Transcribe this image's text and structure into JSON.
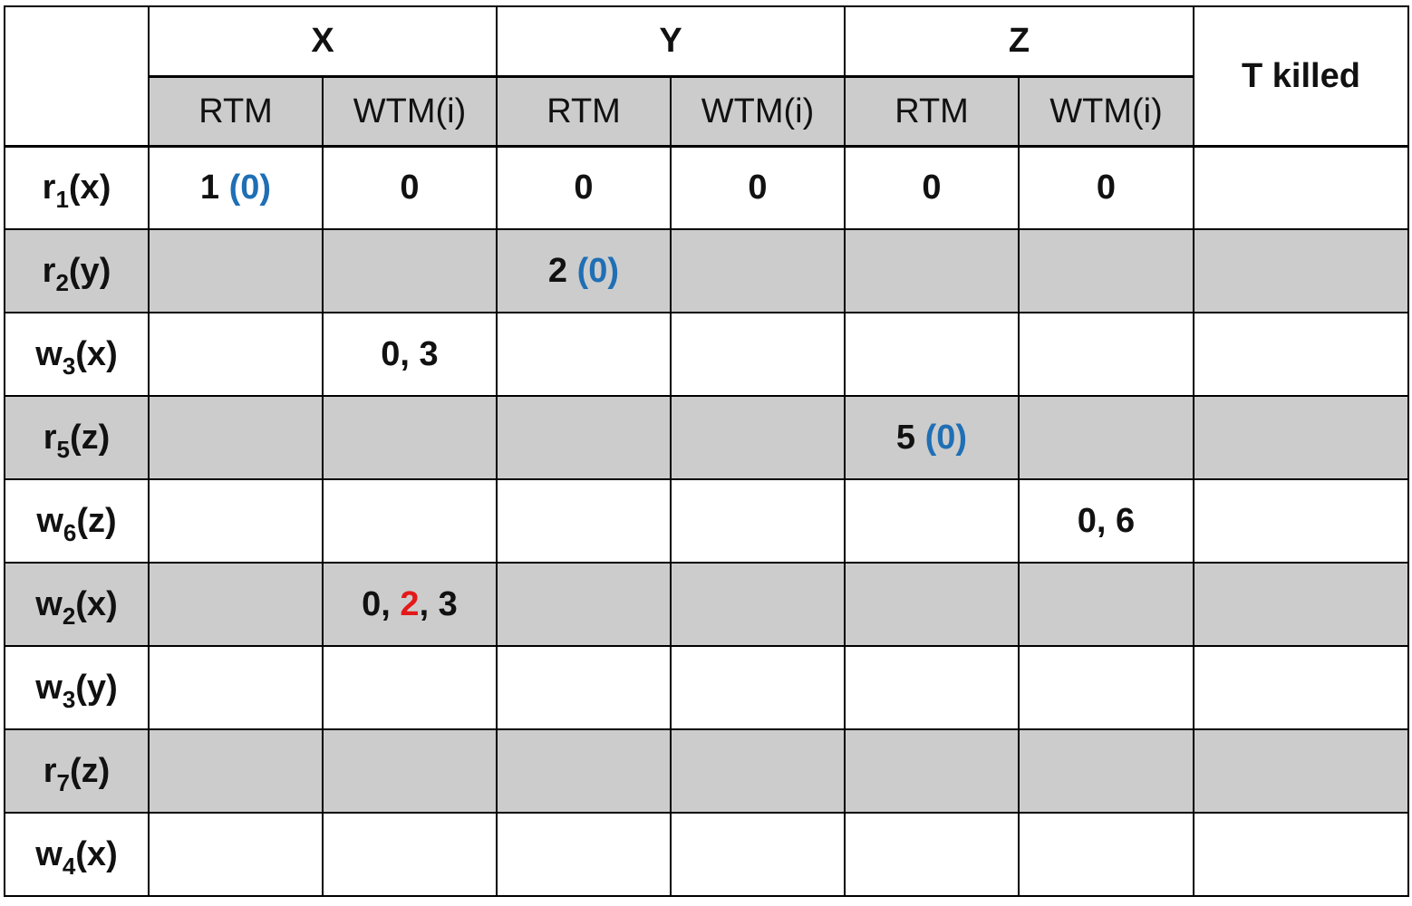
{
  "header": {
    "objects": [
      "X",
      "Y",
      "Z"
    ],
    "sub_columns": [
      "RTM",
      "WTM(i)"
    ],
    "t_killed": "T killed"
  },
  "rows": [
    {
      "op": "r",
      "sub": "1",
      "arg": "(x)",
      "cells": [
        {
          "main": "1 ",
          "blue": "(0)"
        },
        {
          "main": "0"
        },
        {
          "main": "0"
        },
        {
          "main": "0"
        },
        {
          "main": "0"
        },
        {
          "main": "0"
        },
        {
          "main": ""
        }
      ]
    },
    {
      "op": "r",
      "sub": "2",
      "arg": "(y)",
      "cells": [
        {
          "main": ""
        },
        {
          "main": ""
        },
        {
          "main": "2 ",
          "blue": "(0)"
        },
        {
          "main": ""
        },
        {
          "main": ""
        },
        {
          "main": ""
        },
        {
          "main": ""
        }
      ]
    },
    {
      "op": "w",
      "sub": "3",
      "arg": "(x)",
      "cells": [
        {
          "main": ""
        },
        {
          "main": "0, 3"
        },
        {
          "main": ""
        },
        {
          "main": ""
        },
        {
          "main": ""
        },
        {
          "main": ""
        },
        {
          "main": ""
        }
      ]
    },
    {
      "op": "r",
      "sub": "5",
      "arg": "(z)",
      "cells": [
        {
          "main": ""
        },
        {
          "main": ""
        },
        {
          "main": ""
        },
        {
          "main": ""
        },
        {
          "main": "5 ",
          "blue": "(0)"
        },
        {
          "main": ""
        },
        {
          "main": ""
        }
      ]
    },
    {
      "op": "w",
      "sub": "6",
      "arg": "(z)",
      "cells": [
        {
          "main": ""
        },
        {
          "main": ""
        },
        {
          "main": ""
        },
        {
          "main": ""
        },
        {
          "main": ""
        },
        {
          "main": "0, 6"
        },
        {
          "main": ""
        }
      ]
    },
    {
      "op": "w",
      "sub": "2",
      "arg": "(x)",
      "cells": [
        {
          "main": ""
        },
        {
          "main": "0, ",
          "red": "2",
          "tail": ", 3"
        },
        {
          "main": ""
        },
        {
          "main": ""
        },
        {
          "main": ""
        },
        {
          "main": ""
        },
        {
          "main": ""
        }
      ]
    },
    {
      "op": "w",
      "sub": "3",
      "arg": "(y)",
      "cells": [
        {
          "main": ""
        },
        {
          "main": ""
        },
        {
          "main": ""
        },
        {
          "main": ""
        },
        {
          "main": ""
        },
        {
          "main": ""
        },
        {
          "main": ""
        }
      ]
    },
    {
      "op": "r",
      "sub": "7",
      "arg": "(z)",
      "cells": [
        {
          "main": ""
        },
        {
          "main": ""
        },
        {
          "main": ""
        },
        {
          "main": ""
        },
        {
          "main": ""
        },
        {
          "main": ""
        },
        {
          "main": ""
        }
      ]
    },
    {
      "op": "w",
      "sub": "4",
      "arg": "(x)",
      "cells": [
        {
          "main": ""
        },
        {
          "main": ""
        },
        {
          "main": ""
        },
        {
          "main": ""
        },
        {
          "main": ""
        },
        {
          "main": ""
        },
        {
          "main": ""
        }
      ]
    }
  ]
}
